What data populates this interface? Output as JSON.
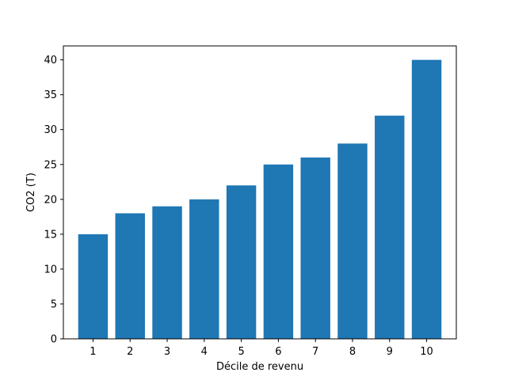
{
  "chart_data": {
    "type": "bar",
    "title": "",
    "xlabel": "Décile de revenu",
    "ylabel": "CO2 (T)",
    "categories": [
      "1",
      "2",
      "3",
      "4",
      "5",
      "6",
      "7",
      "8",
      "9",
      "10"
    ],
    "values": [
      15,
      18,
      19,
      20,
      22,
      25,
      26,
      28,
      32,
      40
    ],
    "ylim": [
      0,
      42
    ],
    "yticks": [
      0,
      5,
      10,
      15,
      20,
      25,
      30,
      35,
      40
    ],
    "grid": false,
    "bar_color": "#1f77b4"
  }
}
